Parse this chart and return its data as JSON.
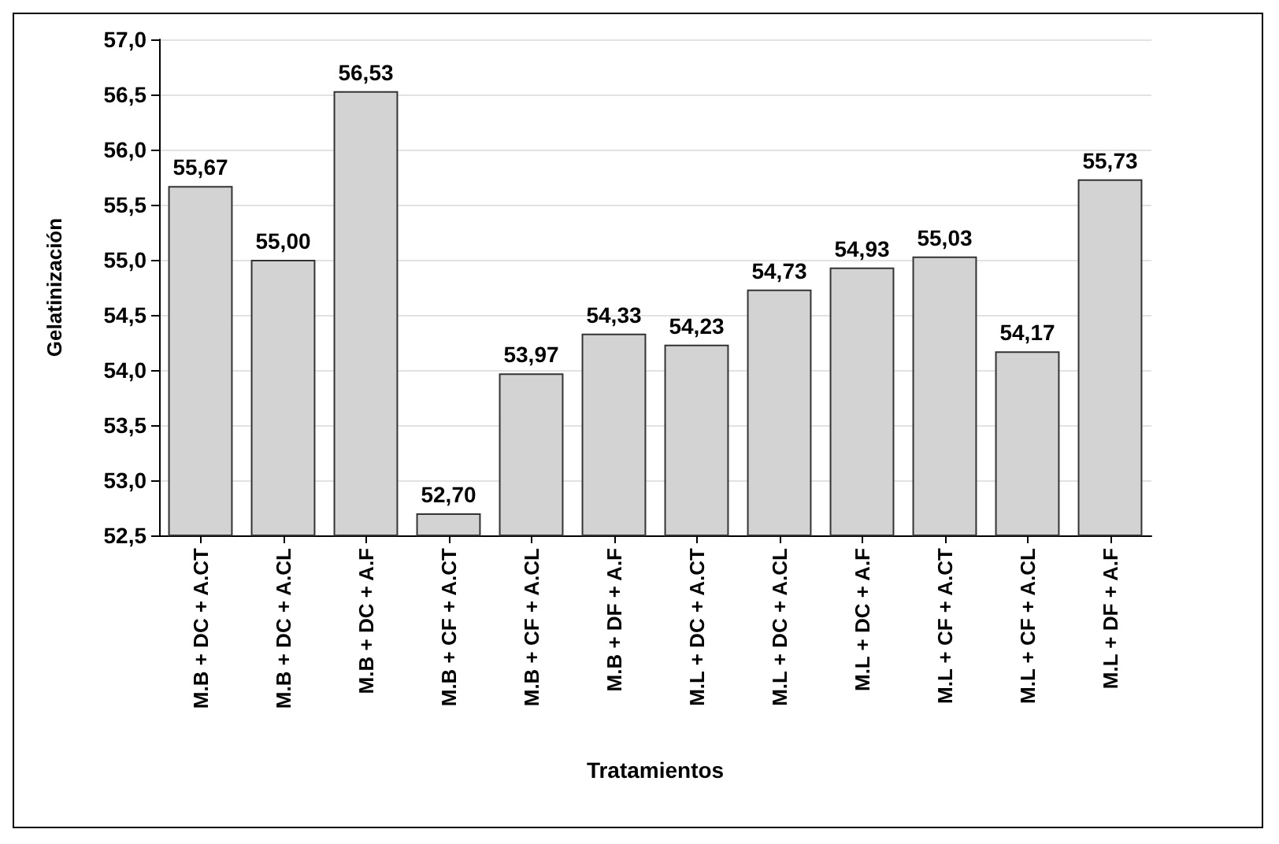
{
  "chart_data": {
    "type": "bar",
    "xlabel": "Tratamientos",
    "ylabel": "Gelatinización",
    "categories": [
      "M.B + DC + A.CT",
      "M.B + DC + A.CL",
      "M.B + DC + A.F",
      "M.B + CF + A.CT",
      "M.B + CF + A.CL",
      "M.B + DF + A.F",
      "M.L + DC + A.CT",
      "M.L + DC + A.CL",
      "M.L + DC + A.F",
      "M.L + CF + A.CT",
      "M.L + CF + A.CL",
      "M.L + DF + A.F"
    ],
    "values": [
      55.67,
      55.0,
      56.53,
      52.7,
      53.97,
      54.33,
      54.23,
      54.73,
      54.93,
      55.03,
      54.17,
      55.73
    ],
    "value_labels": [
      "55,67",
      "55,00",
      "56,53",
      "52,70",
      "53,97",
      "54,33",
      "54,23",
      "54,73",
      "54,93",
      "55,03",
      "54,17",
      "55,73"
    ],
    "color": "#d3d3d3",
    "ylim": [
      52.5,
      57.0
    ],
    "yticks": [
      {
        "value": 52.5,
        "label": "52,5"
      },
      {
        "value": 53.0,
        "label": "53,0"
      },
      {
        "value": 53.5,
        "label": "53,5"
      },
      {
        "value": 54.0,
        "label": "54,0"
      },
      {
        "value": 54.5,
        "label": "54,5"
      },
      {
        "value": 55.0,
        "label": "55,0"
      },
      {
        "value": 55.5,
        "label": "55,5"
      },
      {
        "value": 56.0,
        "label": "56,0"
      },
      {
        "value": 56.5,
        "label": "56,5"
      },
      {
        "value": 57.0,
        "label": "57,0"
      }
    ],
    "grid": "y"
  }
}
